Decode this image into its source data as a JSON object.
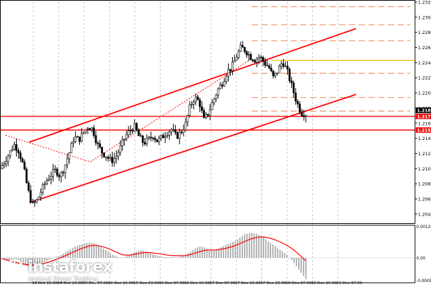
{
  "chart_data": [
    {
      "type": "candlestick",
      "instrument": "",
      "timeframe": "H1",
      "ylim": [
        1.2036,
        1.2328
      ],
      "y_ticks": [
        "1.2328",
        "1.2308",
        "1.2288",
        "1.2268",
        "1.2248",
        "1.2228",
        "1.2208",
        "1.2188",
        "1.2168",
        "1.2148",
        "1.2128",
        "1.2108",
        "1.2088",
        "1.2068",
        "1.2048"
      ],
      "x_ticks": [
        "14 Dec 15:00",
        "14 Dec 23:00",
        "15 Dec 07:00",
        "15 Dec 15:00",
        "15 Dec 23:00",
        "16 Dec 07:00",
        "16 Dec 15:00",
        "17 Dec 07:00",
        "17 Dec 15:00",
        "17 Dec 23:00",
        "18 Dec 07:00",
        "18 Dec 15:00",
        "21 Dec 07:00"
      ],
      "price_path": [
        1.2108,
        1.2118,
        1.2128,
        1.214,
        1.2132,
        1.2112,
        1.208,
        1.206,
        1.2066,
        1.208,
        1.2092,
        1.21,
        1.2106,
        1.2098,
        1.2112,
        1.213,
        1.215,
        1.2146,
        1.2156,
        1.2164,
        1.216,
        1.214,
        1.213,
        1.2124,
        1.2118,
        1.2124,
        1.2136,
        1.215,
        1.2158,
        1.2164,
        1.215,
        1.2142,
        1.2146,
        1.2152,
        1.2144,
        1.215,
        1.2156,
        1.216,
        1.215,
        1.2156,
        1.2166,
        1.219,
        1.2202,
        1.2196,
        1.2172,
        1.2182,
        1.2198,
        1.2212,
        1.2222,
        1.2236,
        1.2242,
        1.2256,
        1.2268,
        1.2264,
        1.2256,
        1.2252,
        1.2256,
        1.2248,
        1.2242,
        1.2228,
        1.2238,
        1.225,
        1.2236,
        1.2216,
        1.2196,
        1.2182,
        1.218
      ],
      "channel_upper": [
        {
          "x": "14 Dec 15:00",
          "y": 1.2143
        },
        {
          "x": "21 Dec 07:00",
          "y": 1.2293
        }
      ],
      "channel_lower": [
        {
          "x": "14 Dec 15:00",
          "y": 1.2063
        },
        {
          "x": "21 Dec 07:00",
          "y": 1.2206
        }
      ],
      "dotted_trendline": [
        {
          "x": "14 Dec 15:00",
          "y": 1.2152
        },
        {
          "x": "15 Dec 07:00",
          "y": 1.2117
        },
        {
          "x": "17 Dec 15:00",
          "y": 1.2252
        }
      ],
      "fib_levels": [
        {
          "label": "",
          "value": 1.2322
        },
        {
          "label": "",
          "value": 1.2298
        },
        {
          "label": "",
          "value": 1.2277
        },
        {
          "label": "",
          "value": 1.2251
        },
        {
          "label": "",
          "value": 1.2234
        },
        {
          "label": "",
          "value": 1.2202
        },
        {
          "label": "",
          "value": 1.2184
        }
      ],
      "yellow_level": 1.2251,
      "support_lines": [
        1.2177,
        1.2159
      ],
      "price_tags": [
        {
          "label": "1.2185",
          "value": 1.2185,
          "color": "#000000"
        },
        {
          "label": "1.2177",
          "value": 1.2177,
          "color": "#ee1111"
        },
        {
          "label": "1.2159",
          "value": 1.2159,
          "color": "#ee1111"
        }
      ],
      "grid": true,
      "colors": {
        "candle": "#000000",
        "channel": "#ff0000",
        "fib": "#f2a07a",
        "yellow": "#f0c000",
        "grid": "#c8c8c8"
      }
    },
    {
      "type": "histogram",
      "indicator": "MACD",
      "y_ticks": [
        "0.00125",
        "0.00",
        "-0.00096"
      ],
      "ylim": [
        -0.00096,
        0.00125
      ],
      "histogram": [
        -5e-05,
        -0.00012,
        -0.00018,
        -0.00022,
        -0.00026,
        -0.0003,
        -0.00034,
        -0.0003,
        -0.00024,
        -0.00018,
        -0.0001,
        -2e-05,
        6e-05,
        0.00012,
        0.00024,
        0.00034,
        0.00044,
        0.0005,
        0.00056,
        0.00058,
        0.00056,
        0.00046,
        0.00036,
        0.00024,
        0.00012,
        4e-05,
        -2e-05,
        6e-05,
        0.00014,
        0.00022,
        0.0003,
        0.00026,
        0.00018,
        0.00012,
        8e-05,
        4e-05,
        2e-05,
        4e-05,
        2e-05,
        6e-05,
        0.00012,
        0.00024,
        0.00036,
        0.00044,
        0.0004,
        0.00032,
        0.0003,
        0.00036,
        0.00044,
        0.00052,
        0.0006,
        0.00068,
        0.00082,
        0.00092,
        0.00096,
        0.00094,
        0.00086,
        0.00076,
        0.0006,
        0.0005,
        0.00036,
        0.00024,
        0.0001,
        -0.0001,
        -0.00034,
        -0.00058,
        -0.00082
      ],
      "signal": [
        -4e-05,
        -8e-05,
        -0.00014,
        -0.00018,
        -0.00022,
        -0.00025,
        -0.00028,
        -0.00028,
        -0.00026,
        -0.00022,
        -0.00017,
        -0.00011,
        -5e-05,
        2e-05,
        0.0001,
        0.00018,
        0.00026,
        0.00034,
        0.0004,
        0.00046,
        0.00048,
        0.00046,
        0.00042,
        0.00036,
        0.00028,
        0.0002,
        0.00012,
        0.0001,
        0.00011,
        0.00014,
        0.00018,
        0.0002,
        0.0002,
        0.00018,
        0.00016,
        0.00013,
        0.0001,
        9e-05,
        8e-05,
        8e-05,
        9e-05,
        0.00013,
        0.00018,
        0.00024,
        0.00028,
        0.0003,
        0.0003,
        0.00031,
        0.00034,
        0.00038,
        0.00043,
        0.00049,
        0.00057,
        0.00065,
        0.00072,
        0.00077,
        0.0008,
        0.0008,
        0.00076,
        0.00071,
        0.00064,
        0.00056,
        0.00046,
        0.00035,
        0.00021,
        5e-05,
        -0.00012
      ],
      "colors": {
        "histogram": "#a0a0a0",
        "signal": "#ff0000"
      }
    }
  ],
  "branding": {
    "name": "instaforex",
    "tagline": "Instant Forex Trading"
  }
}
